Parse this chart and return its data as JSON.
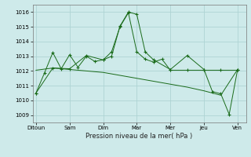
{
  "background_color": "#ceeaea",
  "grid_color": "#aed4d4",
  "line_color": "#1a6b1a",
  "xlabel": "Pression niveau de la mer( hPa )",
  "ylim": [
    1008.5,
    1016.5
  ],
  "yticks": [
    1009,
    1010,
    1011,
    1012,
    1013,
    1014,
    1015,
    1016
  ],
  "day_labels": [
    "Ditoun",
    "Sam",
    "Dim",
    "Mar",
    "Mer",
    "Jeu",
    "Ven"
  ],
  "day_positions": [
    0,
    2,
    4,
    6,
    8,
    10,
    12
  ],
  "series1_x": [
    0,
    0.5,
    1.0,
    1.5,
    2.0,
    2.5,
    3.0,
    3.5,
    4.0,
    4.5,
    5.0,
    5.5,
    6.0,
    6.5,
    7.0,
    7.5,
    8.0,
    9.0,
    10.0,
    11.0,
    12.0
  ],
  "series1_y": [
    1010.5,
    1011.85,
    1013.25,
    1012.15,
    1013.1,
    1012.25,
    1013.0,
    1012.65,
    1012.75,
    1013.3,
    1015.0,
    1015.95,
    1013.3,
    1012.8,
    1012.6,
    1012.8,
    1012.05,
    1012.05,
    1012.05,
    1012.05,
    1012.05
  ],
  "series2_x": [
    0,
    1.0,
    2.0,
    3.0,
    4.0,
    5.0,
    6.0,
    7.0,
    8.0,
    9.0,
    10.0,
    11.0,
    12.0
  ],
  "series2_y": [
    1012.05,
    1012.2,
    1012.1,
    1012.0,
    1011.9,
    1011.7,
    1011.5,
    1011.3,
    1011.1,
    1010.9,
    1010.65,
    1010.35,
    1012.1
  ],
  "series3_x": [
    0,
    1.0,
    2.0,
    3.0,
    4.0,
    4.5,
    5.0,
    5.5,
    6.0,
    6.5,
    7.0,
    8.0,
    9.0,
    10.0,
    10.5,
    11.0,
    11.5,
    12.0
  ],
  "series3_y": [
    1010.5,
    1012.2,
    1012.15,
    1013.05,
    1012.75,
    1013.0,
    1015.05,
    1016.0,
    1015.85,
    1013.3,
    1012.75,
    1012.1,
    1013.05,
    1012.1,
    1010.6,
    1010.45,
    1009.05,
    1012.1
  ],
  "xlim": [
    -0.2,
    12.5
  ]
}
